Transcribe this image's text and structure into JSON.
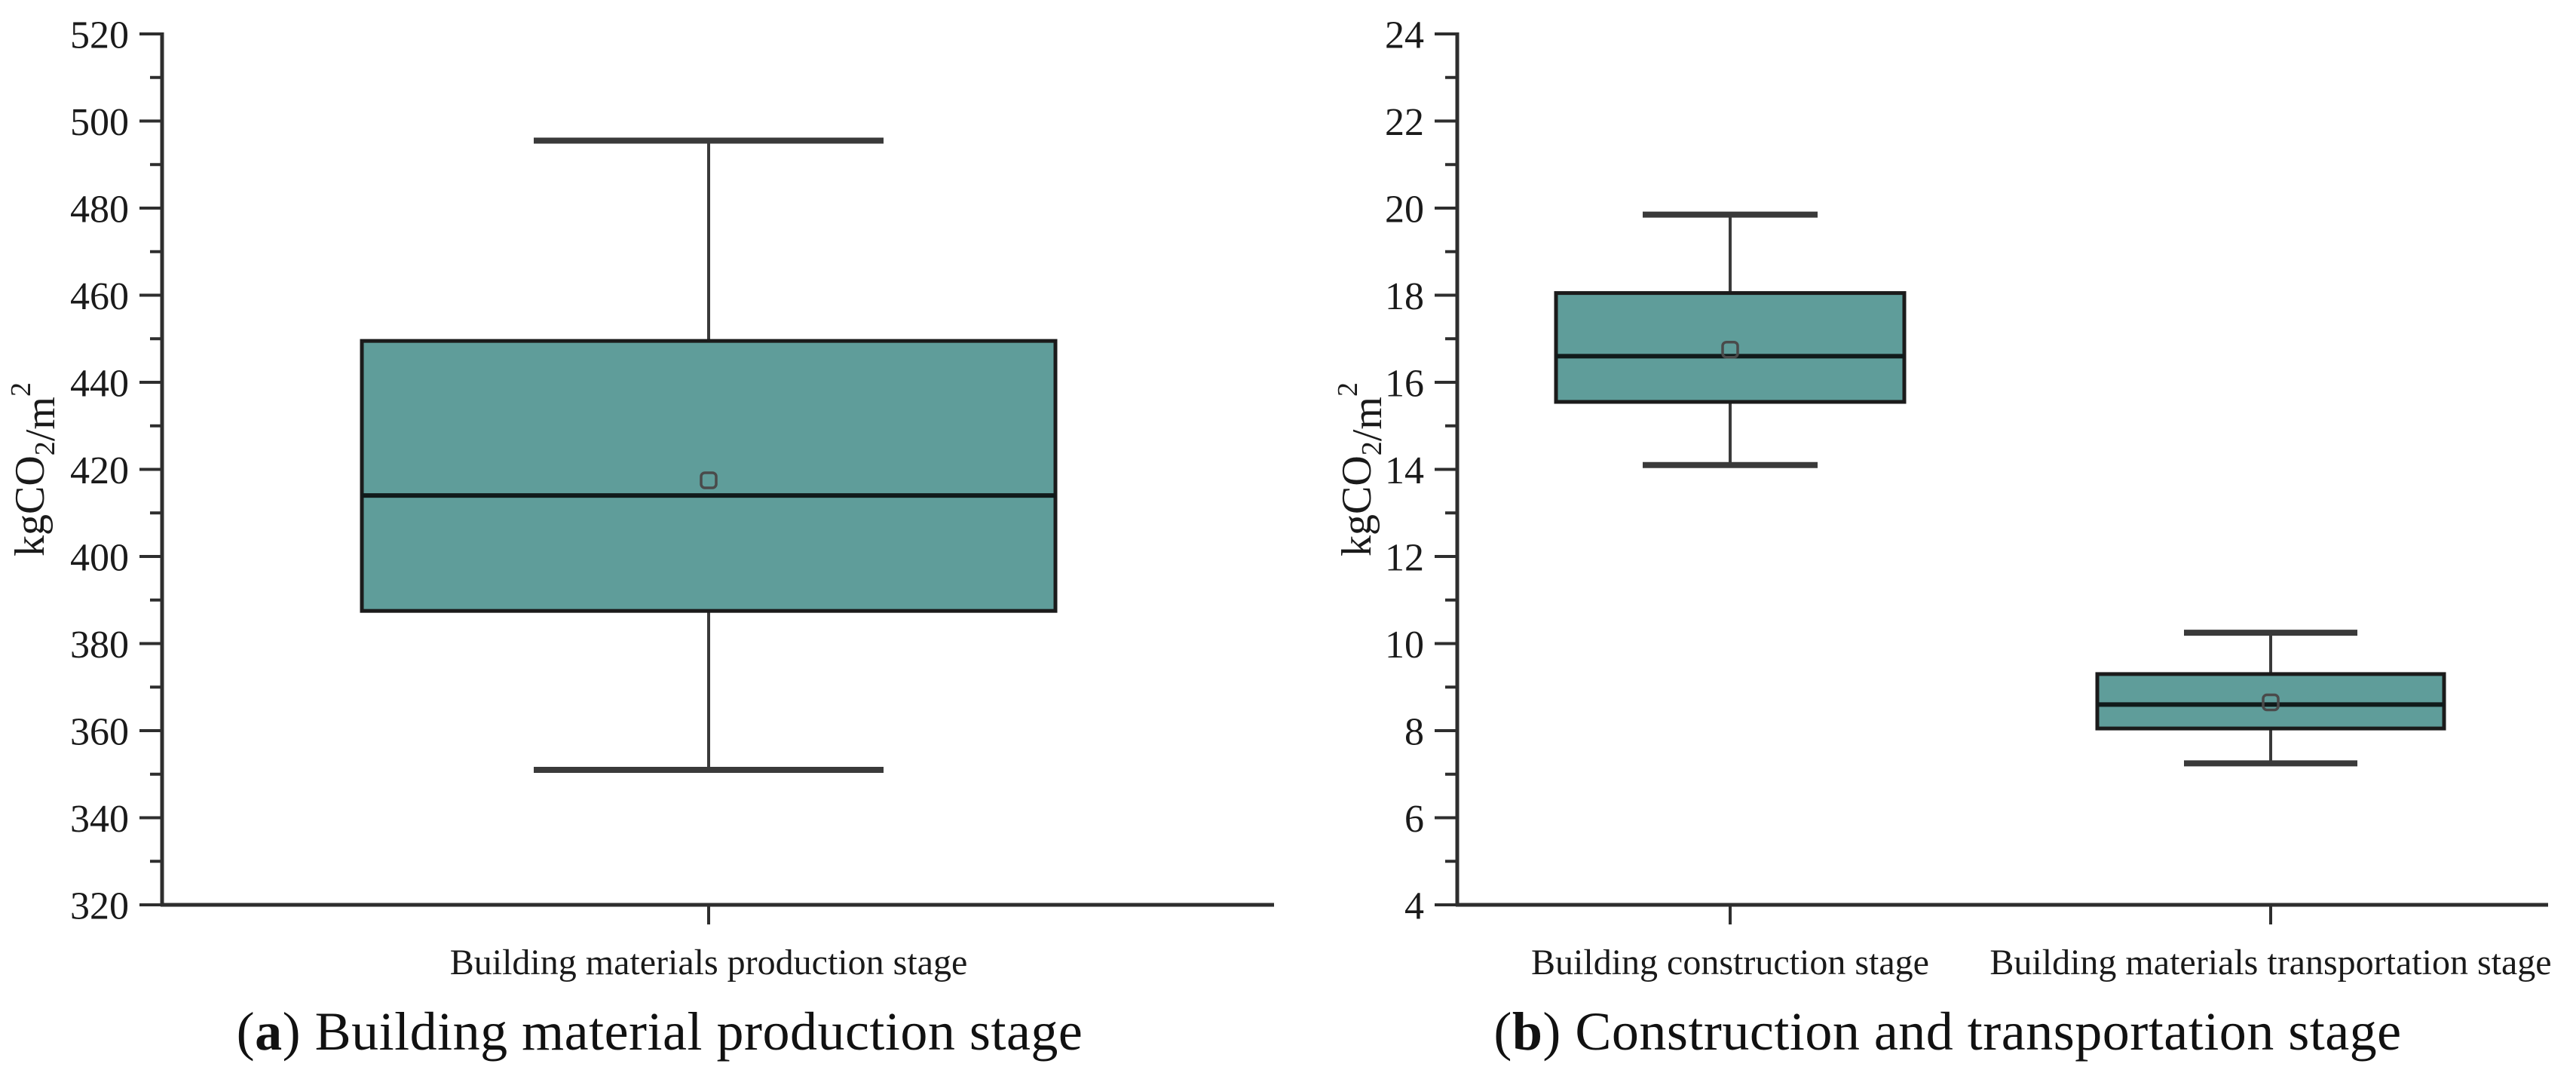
{
  "figure": {
    "background": "#ffffff",
    "colors": {
      "box_fill": "#5f9d9a",
      "box_edge": "#1b1b1b",
      "median": "#101a1a",
      "whisker": "#3a3a3a",
      "axis": "#2e2e2e",
      "mean_marker_edge": "#4a4a4a",
      "text": "#1a1a1a"
    },
    "charts": [
      {
        "id": "a",
        "y_axis_title_parts": [
          {
            "t": "kgCO",
            "pos": "base"
          },
          {
            "t": "2",
            "pos": "sub"
          },
          {
            "t": "/m",
            "pos": "base"
          },
          {
            "t": "2",
            "pos": "sup"
          }
        ],
        "caption": {
          "pre": "(",
          "bold": "a",
          "post": ") Building material production stage"
        }
      },
      {
        "id": "b",
        "y_axis_title_parts": [
          {
            "t": "kgCO",
            "pos": "base"
          },
          {
            "t": "2",
            "pos": "sub"
          },
          {
            "t": "/m",
            "pos": "base"
          },
          {
            "t": "2",
            "pos": "sup"
          }
        ],
        "caption": {
          "pre": "(",
          "bold": "b",
          "post": ") Construction and transportation stage"
        }
      }
    ]
  },
  "chart_data": [
    {
      "type": "boxplot",
      "title": "(a) Building material production stage",
      "ylabel": "kgCO2/m2",
      "ylim": [
        320,
        520
      ],
      "ytick_step": 20,
      "minor_tick_step": 10,
      "grid": false,
      "legend": "none",
      "categories": [
        "Building materials production stage"
      ],
      "series": [
        {
          "name": "Building materials production stage",
          "whisker_low": 351,
          "q1": 387.5,
          "median": 414,
          "q3": 449.5,
          "whisker_high": 495.5,
          "mean": 417.5
        }
      ]
    },
    {
      "type": "boxplot",
      "title": "(b) Construction and transportation stage",
      "ylabel": "kgCO2/m2",
      "ylim": [
        4,
        24
      ],
      "ytick_step": 2,
      "minor_tick_step": 1,
      "grid": false,
      "legend": "none",
      "categories": [
        "Building construction stage",
        "Building materials transportation stage"
      ],
      "series": [
        {
          "name": "Building construction stage",
          "whisker_low": 14.1,
          "q1": 15.55,
          "median": 16.6,
          "q3": 18.05,
          "whisker_high": 19.85,
          "mean": 16.75
        },
        {
          "name": "Building materials transportation stage",
          "whisker_low": 7.25,
          "q1": 8.05,
          "median": 8.6,
          "q3": 9.3,
          "whisker_high": 10.25,
          "mean": 8.65
        }
      ]
    }
  ]
}
